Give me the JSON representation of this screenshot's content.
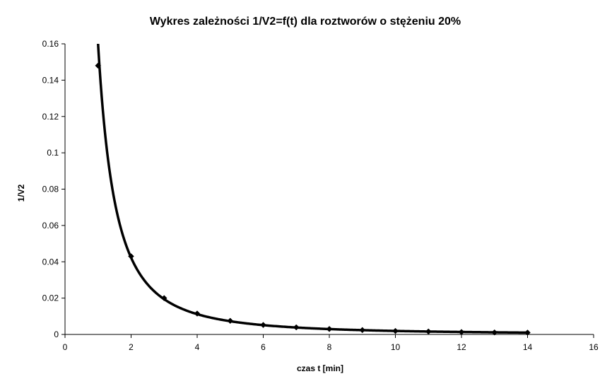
{
  "chart_data": {
    "type": "scatter",
    "title": "Wykres zależności 1/V2=f(t) dla roztworów o stężeniu 20%",
    "xlabel": "czas t [min]",
    "ylabel": "1/V2",
    "xlim": [
      0,
      16
    ],
    "ylim": [
      0,
      0.16
    ],
    "xticks": [
      0,
      2,
      4,
      6,
      8,
      10,
      12,
      14,
      16
    ],
    "yticks": [
      0,
      0.02,
      0.04,
      0.06,
      0.08,
      0.1,
      0.12,
      0.14,
      0.16
    ],
    "xtick_labels": [
      "0",
      "2",
      "4",
      "6",
      "8",
      "10",
      "12",
      "14",
      "16"
    ],
    "ytick_labels": [
      "0",
      "0.02",
      "0.04",
      "0.06",
      "0.08",
      "0.1",
      "0.12",
      "0.14",
      "0.16"
    ],
    "grid": false,
    "legend": "none",
    "series": [
      {
        "marker": "diamond",
        "color": "#000000",
        "x": [
          1,
          2,
          3,
          4,
          5,
          6,
          7,
          8,
          9,
          10,
          11,
          12,
          13,
          14
        ],
        "y": [
          0.148,
          0.043,
          0.02,
          0.0115,
          0.0075,
          0.0052,
          0.0039,
          0.003,
          0.0024,
          0.0019,
          0.0016,
          0.0013,
          0.0011,
          0.001
        ]
      }
    ],
    "trendline": {
      "type": "power",
      "a": 0.16,
      "b": -1.92,
      "x_range": [
        0.98,
        14
      ],
      "color": "#000000"
    }
  }
}
